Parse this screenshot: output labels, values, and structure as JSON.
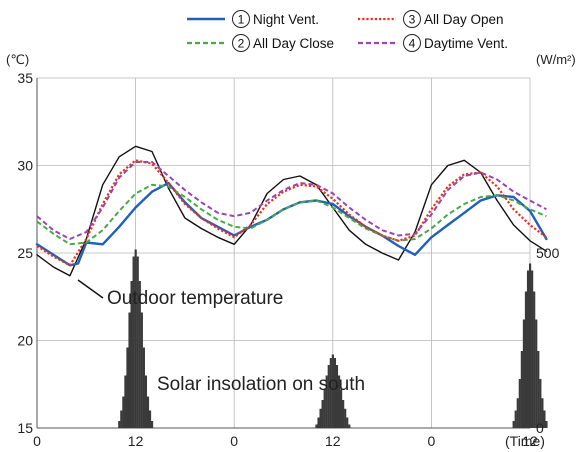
{
  "chart_data": {
    "type": "line",
    "xlabel": "(Time)",
    "ylabel_left": "(℃)",
    "ylabel_right": "(W/m²)",
    "ylim": [
      15,
      35
    ],
    "xlim": [
      0,
      60
    ],
    "x_ticks": [
      0,
      12,
      24,
      36,
      48,
      60
    ],
    "x_tick_labels": [
      "0",
      "12",
      "0",
      "12",
      "0",
      "12"
    ],
    "y_ticks": [
      15,
      20,
      25,
      30,
      35
    ],
    "y_tick_labels": [
      "15",
      "20",
      "25",
      "30",
      "35"
    ],
    "y2_ticks": [
      0,
      500
    ],
    "y2_tick_labels": [
      "0",
      "500"
    ],
    "y2_range": [
      0,
      1000
    ],
    "grid": true,
    "legend_position": "top",
    "legend": [
      {
        "num": "1",
        "label": "Night Vent.",
        "color": "#1f5fbf",
        "style": "solid"
      },
      {
        "num": "2",
        "label": "All Day Close",
        "color": "#4aa84a",
        "style": "dashed"
      },
      {
        "num": "3",
        "label": "All Day Open",
        "color": "#e8321e",
        "style": "dotted"
      },
      {
        "num": "4",
        "label": "Daytime Vent.",
        "color": "#9b45b0",
        "style": "dashed"
      }
    ],
    "annotations": {
      "outdoor": "Outdoor temperature",
      "solar": "Solar insolation on south"
    },
    "series": [
      {
        "name": "Outdoor temperature",
        "color": "#111111",
        "style": "solid",
        "width": 1.4,
        "x": [
          0,
          2,
          4,
          6,
          8,
          10,
          12,
          14,
          16,
          18,
          20,
          22,
          24,
          26,
          28,
          30,
          32,
          34,
          36,
          38,
          40,
          42,
          44,
          46,
          48,
          50,
          52,
          54,
          56,
          58,
          60,
          62
        ],
        "y": [
          24.9,
          24.2,
          23.7,
          25.8,
          28.9,
          30.5,
          31.1,
          30.8,
          28.7,
          27.0,
          26.4,
          25.9,
          25.5,
          26.6,
          28.4,
          29.2,
          29.4,
          28.9,
          27.6,
          26.3,
          25.5,
          25.0,
          24.6,
          26.2,
          28.9,
          30.0,
          30.3,
          29.6,
          28.0,
          26.6,
          25.7,
          25.1
        ]
      },
      {
        "name": "Night Vent.",
        "color": "#1f5fbf",
        "style": "solid",
        "width": 2.4,
        "x": [
          0,
          2,
          4,
          5,
          6,
          8,
          10,
          12,
          14,
          16,
          18,
          20,
          22,
          24,
          26,
          28,
          30,
          32,
          34,
          36,
          38,
          40,
          42,
          44,
          46,
          48,
          50,
          52,
          54,
          56,
          58,
          60,
          62
        ],
        "y": [
          25.5,
          24.9,
          24.3,
          24.4,
          25.6,
          25.5,
          26.5,
          27.6,
          28.5,
          29.0,
          27.9,
          27.0,
          26.5,
          26.0,
          26.5,
          26.9,
          27.5,
          27.9,
          28.0,
          27.8,
          27.1,
          26.5,
          26.0,
          25.4,
          24.9,
          25.9,
          26.6,
          27.3,
          28.0,
          28.3,
          28.2,
          27.4,
          25.8
        ]
      },
      {
        "name": "All Day Close",
        "color": "#4aa84a",
        "style": "dashed",
        "width": 2.0,
        "x": [
          0,
          2,
          4,
          6,
          8,
          10,
          12,
          14,
          16,
          18,
          20,
          22,
          24,
          26,
          28,
          30,
          32,
          34,
          36,
          38,
          40,
          42,
          44,
          46,
          48,
          50,
          52,
          54,
          56,
          58,
          60,
          62
        ],
        "y": [
          26.8,
          26.1,
          25.5,
          25.6,
          26.3,
          27.4,
          28.4,
          28.9,
          28.8,
          28.2,
          27.5,
          26.9,
          26.5,
          26.4,
          26.9,
          27.5,
          27.9,
          28.0,
          27.6,
          27.0,
          26.4,
          26.0,
          25.7,
          25.8,
          26.4,
          27.2,
          27.8,
          28.2,
          28.3,
          28.0,
          27.5,
          27.1
        ]
      },
      {
        "name": "All Day Open",
        "color": "#e8321e",
        "style": "dotted",
        "width": 2.2,
        "x": [
          0,
          2,
          4,
          6,
          8,
          10,
          12,
          14,
          16,
          18,
          20,
          22,
          24,
          26,
          28,
          30,
          32,
          34,
          36,
          38,
          40,
          42,
          44,
          46,
          48,
          50,
          52,
          54,
          56,
          58,
          60,
          62
        ],
        "y": [
          25.4,
          24.8,
          24.3,
          25.8,
          27.8,
          29.5,
          30.3,
          30.1,
          29.0,
          27.8,
          27.0,
          26.4,
          25.9,
          26.6,
          27.8,
          28.5,
          28.9,
          28.8,
          28.1,
          27.2,
          26.5,
          26.0,
          25.7,
          26.0,
          27.5,
          28.8,
          29.5,
          29.6,
          28.8,
          27.5,
          26.6,
          25.9
        ]
      },
      {
        "name": "Daytime Vent.",
        "color": "#9b45b0",
        "style": "dashed",
        "width": 2.0,
        "x": [
          0,
          2,
          4,
          6,
          8,
          10,
          12,
          14,
          16,
          18,
          20,
          22,
          24,
          26,
          28,
          30,
          32,
          34,
          36,
          38,
          40,
          42,
          44,
          46,
          48,
          50,
          52,
          54,
          56,
          58,
          60,
          62
        ],
        "y": [
          27.1,
          26.3,
          25.8,
          26.2,
          27.6,
          29.3,
          30.2,
          30.2,
          29.4,
          28.6,
          27.9,
          27.3,
          27.1,
          27.3,
          28.0,
          28.6,
          29.0,
          28.9,
          28.4,
          27.6,
          26.9,
          26.3,
          26.0,
          26.1,
          27.2,
          28.6,
          29.4,
          29.6,
          29.2,
          28.5,
          28.0,
          27.5
        ]
      }
    ],
    "solar": {
      "name": "Solar insolation on south",
      "color": "#3a3a3a",
      "days": [
        {
          "center": 12,
          "values": [
            20,
            50,
            90,
            150,
            230,
            330,
            420,
            490,
            510,
            490,
            420,
            330,
            230,
            150,
            90,
            50,
            20
          ]
        },
        {
          "center": 36,
          "values": [
            10,
            30,
            55,
            80,
            110,
            150,
            180,
            200,
            210,
            200,
            180,
            150,
            110,
            80,
            55,
            30,
            10
          ]
        },
        {
          "center": 60,
          "values": [
            20,
            50,
            85,
            140,
            220,
            310,
            390,
            450,
            470,
            450,
            390,
            310,
            220,
            140,
            85,
            50,
            20
          ]
        }
      ]
    }
  }
}
